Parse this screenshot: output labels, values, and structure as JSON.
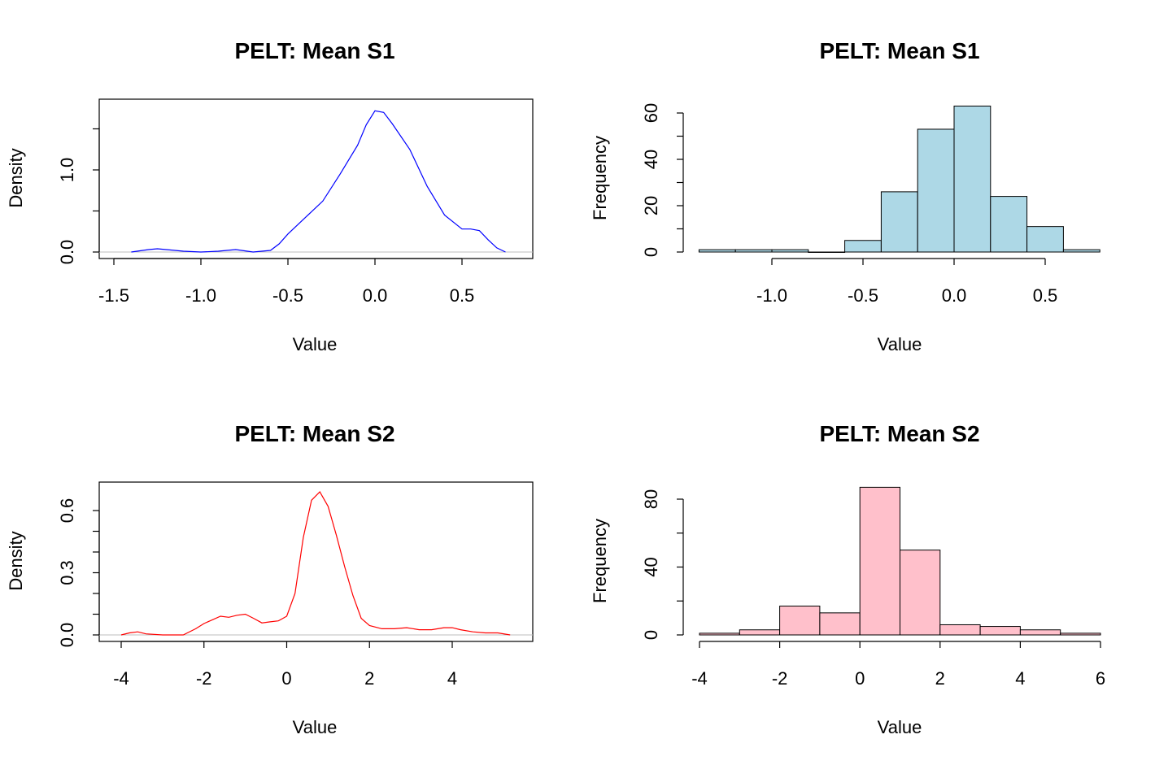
{
  "chart_data": [
    {
      "type": "line",
      "title": "PELT: Mean S1",
      "xlabel": "Value",
      "ylabel": "Density",
      "color": "#0000ff",
      "baseline_color": "#bebebe",
      "xlim": [
        -1.5,
        0.8
      ],
      "ylim": [
        0,
        1.8
      ],
      "x_ticks": [
        "-1.5",
        "-1.0",
        "-0.5",
        "0.0",
        "0.5"
      ],
      "y_ticks": [
        "0.0",
        "1.0"
      ],
      "x": [
        -1.4,
        -1.3,
        -1.25,
        -1.2,
        -1.1,
        -1.0,
        -0.9,
        -0.8,
        -0.7,
        -0.6,
        -0.55,
        -0.5,
        -0.4,
        -0.3,
        -0.2,
        -0.1,
        -0.05,
        0.0,
        0.05,
        0.1,
        0.2,
        0.3,
        0.4,
        0.5,
        0.55,
        0.6,
        0.65,
        0.7,
        0.75
      ],
      "y": [
        0.0,
        0.03,
        0.04,
        0.03,
        0.01,
        0.0,
        0.01,
        0.03,
        0.0,
        0.02,
        0.1,
        0.22,
        0.42,
        0.62,
        0.95,
        1.3,
        1.55,
        1.72,
        1.7,
        1.56,
        1.25,
        0.8,
        0.45,
        0.28,
        0.28,
        0.26,
        0.15,
        0.05,
        0.0
      ]
    },
    {
      "type": "bar",
      "title": "PELT: Mean S1",
      "xlabel": "Value",
      "ylabel": "Frequency",
      "color": "#add8e6",
      "xlim": [
        -1.4,
        0.8
      ],
      "ylim": [
        0,
        65
      ],
      "x_ticks": [
        "-1.0",
        "-0.5",
        "0.0",
        "0.5"
      ],
      "y_ticks": [
        "0",
        "20",
        "40",
        "60"
      ],
      "bin_edges": [
        -1.4,
        -1.2,
        -1.0,
        -0.8,
        -0.6,
        -0.4,
        -0.2,
        0.0,
        0.2,
        0.4,
        0.6,
        0.8
      ],
      "values": [
        1,
        1,
        1,
        0,
        5,
        26,
        53,
        63,
        24,
        11,
        1
      ]
    },
    {
      "type": "line",
      "title": "PELT: Mean S2",
      "xlabel": "Value",
      "ylabel": "Density",
      "color": "#ff0000",
      "baseline_color": "#bebebe",
      "xlim": [
        -4,
        5.5
      ],
      "ylim": [
        0,
        0.7
      ],
      "x_ticks": [
        "-4",
        "-2",
        "0",
        "2",
        "4"
      ],
      "y_ticks": [
        "0.0",
        "0.3",
        "0.6"
      ],
      "x": [
        -4.0,
        -3.8,
        -3.6,
        -3.4,
        -3.0,
        -2.5,
        -2.2,
        -2.0,
        -1.6,
        -1.4,
        -1.2,
        -1.0,
        -0.8,
        -0.6,
        -0.4,
        -0.2,
        0.0,
        0.2,
        0.4,
        0.6,
        0.8,
        1.0,
        1.2,
        1.4,
        1.6,
        1.8,
        2.0,
        2.3,
        2.6,
        2.9,
        3.2,
        3.5,
        3.8,
        4.0,
        4.2,
        4.5,
        4.8,
        5.1,
        5.4
      ],
      "y": [
        0.0,
        0.01,
        0.015,
        0.005,
        0.0,
        0.0,
        0.03,
        0.055,
        0.09,
        0.085,
        0.095,
        0.1,
        0.08,
        0.058,
        0.063,
        0.068,
        0.09,
        0.2,
        0.47,
        0.65,
        0.69,
        0.62,
        0.48,
        0.33,
        0.19,
        0.08,
        0.045,
        0.03,
        0.03,
        0.035,
        0.025,
        0.025,
        0.035,
        0.035,
        0.025,
        0.015,
        0.01,
        0.01,
        0.0
      ]
    },
    {
      "type": "bar",
      "title": "PELT: Mean S2",
      "xlabel": "Value",
      "ylabel": "Frequency",
      "color": "#ffc0cb",
      "xlim": [
        -4,
        6
      ],
      "ylim": [
        0,
        87
      ],
      "x_ticks": [
        "-4",
        "-2",
        "0",
        "2",
        "4",
        "6"
      ],
      "y_ticks": [
        "0",
        "40",
        "80"
      ],
      "bin_edges": [
        -4,
        -3,
        -2,
        -1,
        0,
        1,
        2,
        3,
        4,
        5,
        6
      ],
      "values": [
        1,
        3,
        17,
        13,
        87,
        50,
        6,
        5,
        3,
        1
      ]
    }
  ]
}
